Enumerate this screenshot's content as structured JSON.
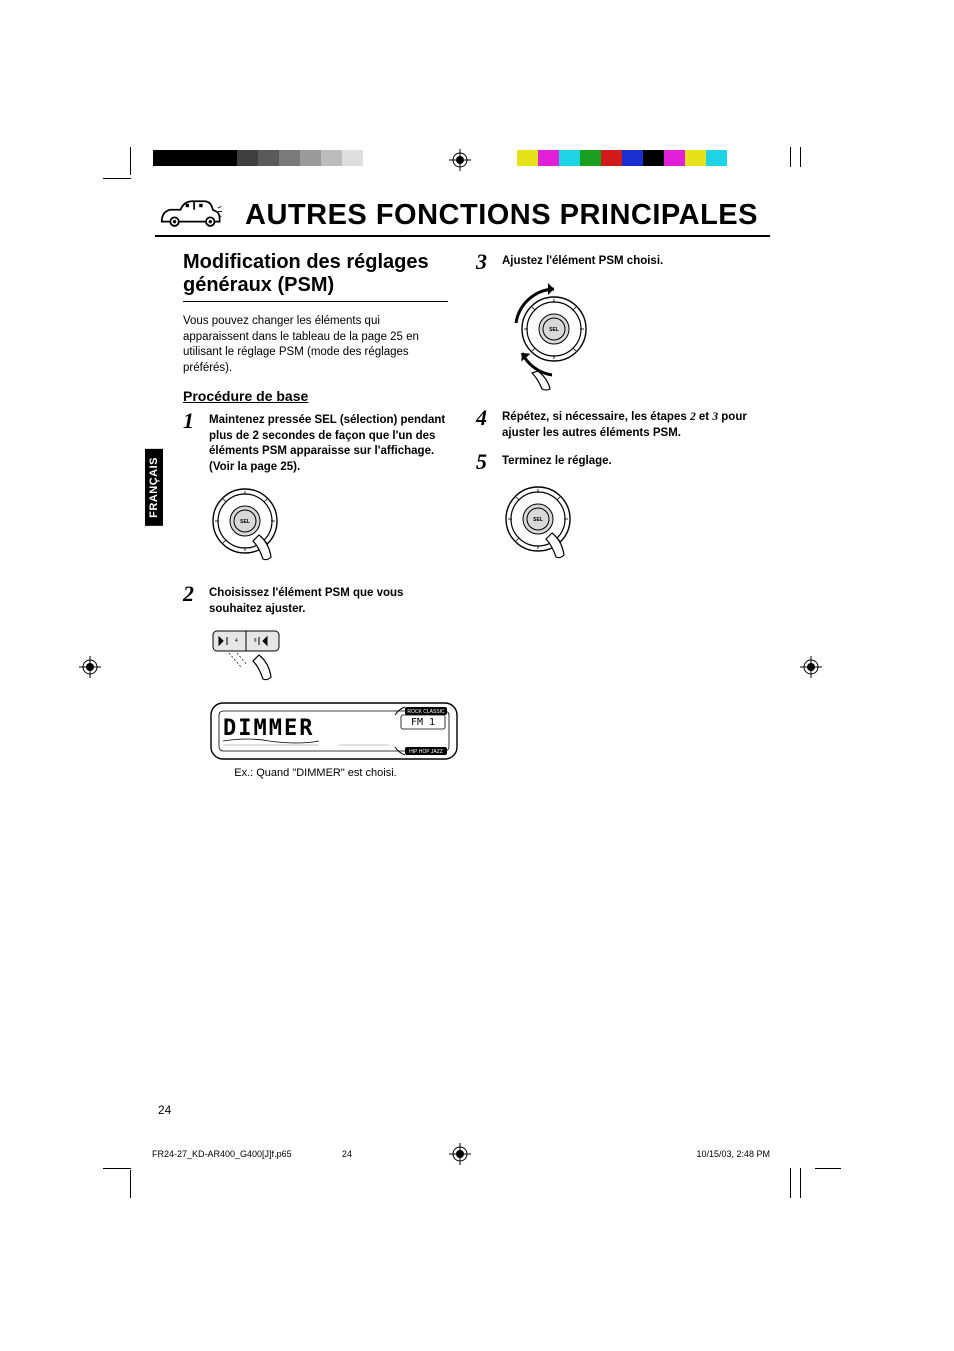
{
  "colors": {
    "text": "#000000",
    "bg": "#ffffff",
    "tab_bg": "#000000",
    "tab_fg": "#ffffff"
  },
  "colorbar_left": [
    "#000000",
    "#000000",
    "#000000",
    "#000000",
    "#3f3f3f",
    "#5a5a5a",
    "#7a7a7a",
    "#9a9a9a",
    "#bcbcbc",
    "#dedede",
    "#ffffff"
  ],
  "colorbar_right": [
    "#e6e217",
    "#e11fd9",
    "#1fd3e6",
    "#19a01f",
    "#d11a1a",
    "#1a2fd1",
    "#000000",
    "#e11fd9",
    "#e6e217",
    "#1fd3e6",
    "#ffffff"
  ],
  "lang_tab": "FRANÇAIS",
  "main_title": "AUTRES FONCTIONS PRINCIPALES",
  "section_heading": "Modification des réglages généraux (PSM)",
  "intro": "Vous pouvez changer les éléments qui apparaissent dans le tableau de la page 25 en utilisant le réglage PSM (mode des réglages préférés).",
  "sub_heading": "Procédure de base",
  "steps": {
    "s1": "Maintenez pressée SEL (sélection) pendant plus de 2 secondes de façon que l'un des éléments PSM apparaisse sur l'affichage. (Voir la page 25).",
    "s2": "Choisissez l'élément PSM que vous souhaitez ajuster.",
    "s3": "Ajustez l'élément PSM choisi.",
    "s4a": "Répétez, si nécessaire, les étapes ",
    "s4b": " et ",
    "s4c": " pour ajuster les autres éléments PSM.",
    "s4n1": "2",
    "s4n2": "3",
    "s5": "Terminez le réglage."
  },
  "display_text": "DIMMER",
  "display_sub": "FM 1",
  "caption": "Ex.: Quand \"DIMMER\" est choisi.",
  "page_number": "24",
  "footer": {
    "filename": "FR24-27_KD-AR400_G400[J]f.p65",
    "page": "24",
    "timestamp": "10/15/03, 2:48 PM"
  }
}
